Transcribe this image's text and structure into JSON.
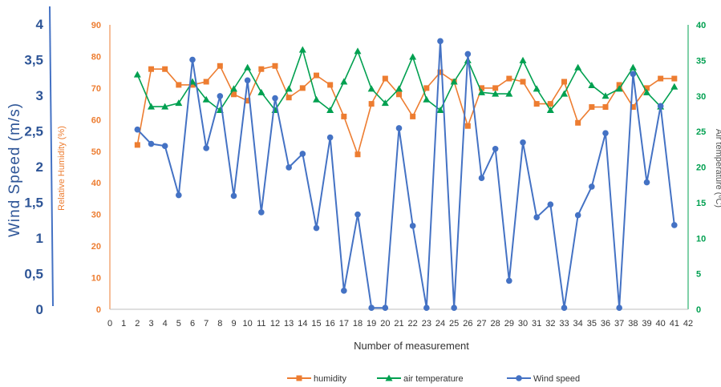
{
  "chart_data": {
    "type": "line",
    "xlabel": "Number of measurement",
    "x_ticks": [
      0,
      1,
      2,
      3,
      4,
      5,
      6,
      7,
      8,
      9,
      10,
      11,
      12,
      13,
      14,
      15,
      16,
      17,
      18,
      19,
      20,
      21,
      22,
      23,
      24,
      25,
      26,
      27,
      28,
      29,
      30,
      31,
      32,
      33,
      34,
      35,
      36,
      37,
      38,
      39,
      40,
      41,
      42
    ],
    "x_range": [
      0,
      42
    ],
    "axes": {
      "wind": {
        "label": "Wind Speed (m/s)",
        "range": [
          0,
          4
        ],
        "ticks": [
          "0",
          "0,5",
          "1",
          "1,5",
          "2",
          "2,5",
          "3",
          "3,5",
          "4"
        ],
        "color": "#4472c4"
      },
      "humidity": {
        "label": "Relative Humidity (%)",
        "range": [
          0,
          90
        ],
        "ticks": [
          "0",
          "10",
          "20",
          "30",
          "40",
          "50",
          "60",
          "70",
          "80",
          "90"
        ],
        "color": "#ed7d31"
      },
      "temperature": {
        "label": "Air temperature (ºC)",
        "range": [
          0,
          40
        ],
        "ticks": [
          "0",
          "5",
          "10",
          "15",
          "20",
          "25",
          "30",
          "35",
          "40"
        ],
        "color": "#00a050"
      }
    },
    "x": [
      2,
      3,
      4,
      5,
      6,
      7,
      8,
      9,
      10,
      11,
      12,
      13,
      14,
      15,
      16,
      17,
      18,
      19,
      20,
      21,
      22,
      23,
      24,
      25,
      26,
      27,
      28,
      29,
      30,
      31,
      32,
      33,
      34,
      35,
      36,
      37,
      38,
      39,
      40,
      41
    ],
    "series": [
      {
        "name": "humidity",
        "axis": "humidity",
        "marker": "square",
        "color": "#ed7d31",
        "values": [
          52,
          76,
          76,
          71,
          71,
          72,
          77,
          68,
          66,
          76,
          77,
          67,
          70,
          74,
          71,
          61,
          49,
          65,
          73,
          68,
          61,
          70,
          75,
          72,
          58,
          70,
          70,
          73,
          72,
          65,
          65,
          72,
          59,
          64,
          64,
          71,
          64,
          70,
          73,
          73
        ]
      },
      {
        "name": "air temperature",
        "axis": "temperature",
        "marker": "triangle",
        "color": "#00a050",
        "values": [
          33,
          28.5,
          28.5,
          29,
          32,
          29.5,
          28,
          31,
          34,
          30.5,
          28,
          31,
          36.5,
          29.5,
          28,
          32,
          36.3,
          31,
          29,
          31,
          35.5,
          29.5,
          28,
          32,
          35,
          30.5,
          30.3,
          30.3,
          35,
          31,
          28,
          30.3,
          34,
          31.5,
          30,
          31,
          34,
          30.5,
          28.5,
          31.3
        ]
      },
      {
        "name": "Wind speed",
        "axis": "wind",
        "marker": "circle",
        "color": "#4472c4",
        "values": [
          2.52,
          2.32,
          2.29,
          1.6,
          3.5,
          2.26,
          2.99,
          1.59,
          3.21,
          1.36,
          2.96,
          1.99,
          2.18,
          1.14,
          2.41,
          0.26,
          1.33,
          0.02,
          0.02,
          2.54,
          1.17,
          0.02,
          3.76,
          0.02,
          3.58,
          1.84,
          2.25,
          0.4,
          2.34,
          1.29,
          1.47,
          0.02,
          1.32,
          1.72,
          2.47,
          0.02,
          3.3,
          1.78,
          2.85,
          1.18
        ]
      }
    ],
    "legend": {
      "placement": "bottom"
    }
  }
}
